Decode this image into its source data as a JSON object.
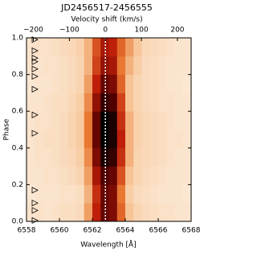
{
  "chart_data": {
    "type": "heatmap",
    "title": "JD2456517-2456555",
    "x_label": "Wavelength [Å]",
    "x2_label": "Velocity shift (km/s)",
    "y_label": "Phase",
    "xlim": [
      6558,
      6568
    ],
    "xticks": [
      6558,
      6560,
      6562,
      6564,
      6566,
      6568
    ],
    "x2lim": [
      -219,
      238
    ],
    "x2ticks": [
      {
        "value": -200,
        "label": "−200"
      },
      {
        "value": -100,
        "label": "−100"
      },
      0,
      100,
      200
    ],
    "ylim": [
      0,
      1
    ],
    "yticks": [
      {
        "value": 0,
        "label": "0.0"
      },
      0.2,
      0.4,
      0.6,
      0.8,
      {
        "value": 1,
        "label": "1.0"
      }
    ],
    "xbins": [
      6558,
      6558.5,
      6559,
      6559.5,
      6560,
      6560.5,
      6561,
      6561.5,
      6562,
      6562.5,
      6563,
      6563.5,
      6564,
      6564.5,
      6565,
      6565.5,
      6566,
      6566.5,
      6567,
      6567.5,
      6568
    ],
    "ybins": [
      0,
      0.1,
      0.2,
      0.3,
      0.4,
      0.5,
      0.6,
      0.7,
      0.8,
      0.9,
      1
    ],
    "z": [
      [
        0.05,
        0.06,
        0.05,
        0.06,
        0.07,
        0.07,
        0.08,
        0.25,
        0.6,
        0.8,
        0.75,
        0.4,
        0.15,
        0.1,
        0.08,
        0.07,
        0.06,
        0.06,
        0.05,
        0.05
      ],
      [
        0.04,
        0.05,
        0.05,
        0.05,
        0.06,
        0.06,
        0.07,
        0.2,
        0.55,
        0.8,
        0.75,
        0.35,
        0.12,
        0.08,
        0.07,
        0.06,
        0.05,
        0.05,
        0.05,
        0.04
      ],
      [
        0.05,
        0.05,
        0.06,
        0.06,
        0.07,
        0.08,
        0.1,
        0.25,
        0.65,
        0.85,
        0.8,
        0.45,
        0.15,
        0.1,
        0.08,
        0.07,
        0.06,
        0.05,
        0.05,
        0.05
      ],
      [
        0.05,
        0.06,
        0.06,
        0.07,
        0.08,
        0.09,
        0.12,
        0.3,
        0.75,
        0.95,
        0.9,
        0.55,
        0.2,
        0.1,
        0.09,
        0.08,
        0.07,
        0.06,
        0.05,
        0.05
      ],
      [
        0.05,
        0.06,
        0.07,
        0.07,
        0.08,
        0.1,
        0.13,
        0.35,
        0.8,
        1.0,
        0.95,
        0.6,
        0.2,
        0.11,
        0.09,
        0.08,
        0.07,
        0.06,
        0.06,
        0.05
      ],
      [
        0.05,
        0.06,
        0.06,
        0.07,
        0.08,
        0.1,
        0.13,
        0.35,
        0.8,
        1.0,
        0.95,
        0.55,
        0.2,
        0.11,
        0.09,
        0.08,
        0.07,
        0.06,
        0.05,
        0.05
      ],
      [
        0.05,
        0.05,
        0.06,
        0.07,
        0.07,
        0.09,
        0.12,
        0.3,
        0.7,
        0.9,
        0.85,
        0.5,
        0.15,
        0.1,
        0.08,
        0.07,
        0.06,
        0.06,
        0.05,
        0.05
      ],
      [
        0.04,
        0.05,
        0.05,
        0.06,
        0.07,
        0.08,
        0.1,
        0.25,
        0.6,
        0.8,
        0.75,
        0.4,
        0.15,
        0.1,
        0.08,
        0.07,
        0.06,
        0.05,
        0.05,
        0.04
      ],
      [
        0.05,
        0.05,
        0.06,
        0.06,
        0.07,
        0.08,
        0.1,
        0.2,
        0.5,
        0.7,
        0.65,
        0.35,
        0.2,
        0.12,
        0.08,
        0.07,
        0.06,
        0.05,
        0.05,
        0.05
      ],
      [
        0.05,
        0.06,
        0.06,
        0.07,
        0.08,
        0.09,
        0.11,
        0.2,
        0.45,
        0.65,
        0.6,
        0.4,
        0.25,
        0.14,
        0.09,
        0.08,
        0.07,
        0.06,
        0.05,
        0.05
      ]
    ],
    "marker_phases": [
      0.99,
      0.93,
      0.89,
      0.87,
      0.83,
      0.79,
      0.72,
      0.58,
      0.48,
      0.17,
      0.1,
      0.06,
      0.005
    ],
    "vline_velocity": 0
  }
}
